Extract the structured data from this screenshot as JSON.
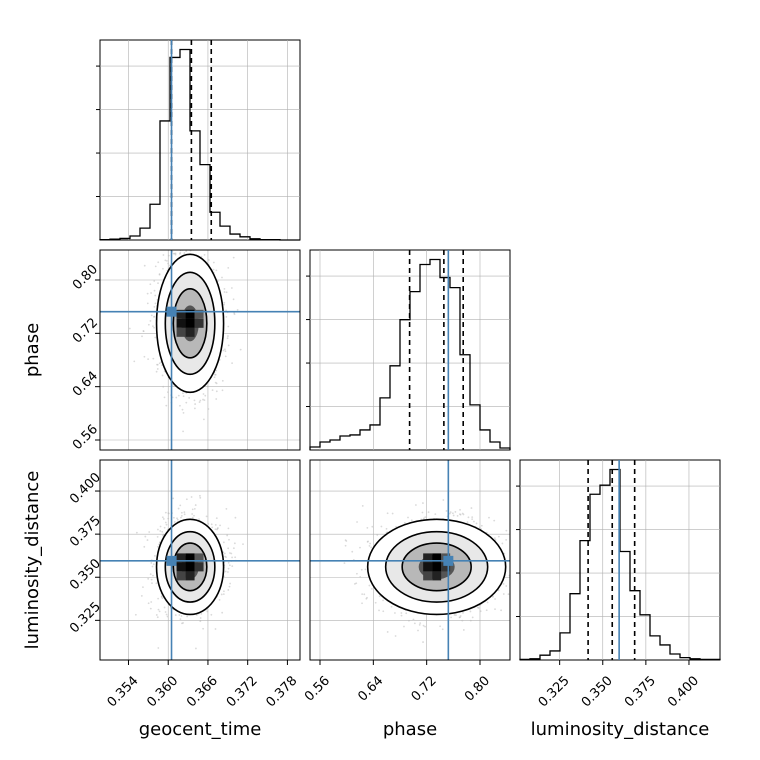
{
  "chart_data": {
    "type": "corner",
    "parameters": [
      "geocent_time",
      "phase",
      "luminosity_distance"
    ],
    "ranges": {
      "geocent_time": [
        0.3497,
        0.3799
      ],
      "phase": [
        0.545,
        0.845
      ],
      "luminosity_distance": [
        0.302,
        0.418
      ]
    },
    "ticks": {
      "geocent_time": [
        "0.354",
        "0.360",
        "0.366",
        "0.372",
        "0.378"
      ],
      "phase": [
        "0.56",
        "0.64",
        "0.72",
        "0.80"
      ],
      "luminosity_distance": [
        "0.325",
        "0.350",
        "0.375",
        "0.400"
      ]
    },
    "injection_values": {
      "geocent_time": 0.3605,
      "phase": 0.7525,
      "luminosity_distance": 0.3595
    },
    "quantiles": {
      "geocent_time": [
        0.3605,
        0.3635,
        0.3665
      ],
      "phase": [
        0.6944,
        0.7458,
        0.7748
      ],
      "luminosity_distance": [
        0.3415,
        0.3555,
        0.3685
      ]
    },
    "histograms": {
      "geocent_time": {
        "bins": [
          0.3497,
          0.35121,
          0.35272,
          0.35423,
          0.35574,
          0.35725,
          0.35876,
          0.36027,
          0.36178,
          0.36329,
          0.3648,
          0.36631,
          0.36782,
          0.36933,
          0.37084,
          0.37235,
          0.37386,
          0.37537,
          0.37688,
          0.37839,
          0.3799
        ],
        "counts": [
          1,
          2,
          4,
          10,
          30,
          90,
          300,
          460,
          480,
          275,
          190,
          70,
          35,
          15,
          8,
          3,
          1,
          1,
          0,
          0
        ]
      },
      "phase": {
        "bins": [
          0.545,
          0.56,
          0.575,
          0.59,
          0.605,
          0.62,
          0.635,
          0.65,
          0.665,
          0.68,
          0.695,
          0.71,
          0.725,
          0.74,
          0.755,
          0.77,
          0.785,
          0.8,
          0.815,
          0.83,
          0.845
        ],
        "counts": [
          3,
          8,
          10,
          14,
          15,
          20,
          25,
          52,
          84,
          130,
          158,
          185,
          190,
          172,
          162,
          95,
          45,
          20,
          8,
          2
        ]
      },
      "luminosity_distance": {
        "bins": [
          0.302,
          0.3078,
          0.3136,
          0.3194,
          0.3252,
          0.331,
          0.3368,
          0.3426,
          0.3484,
          0.3542,
          0.36,
          0.3658,
          0.3716,
          0.3774,
          0.3832,
          0.389,
          0.3948,
          0.4006,
          0.4064,
          0.4122,
          0.418
        ],
        "counts": [
          1,
          2,
          8,
          15,
          45,
          110,
          198,
          275,
          290,
          316,
          180,
          115,
          75,
          40,
          25,
          10,
          4,
          2,
          1,
          1
        ]
      }
    },
    "colors": {
      "truth": "#4682b4",
      "contour": "#000000",
      "samples": "#bbbbbb",
      "grid": "#b0b0b0"
    }
  }
}
